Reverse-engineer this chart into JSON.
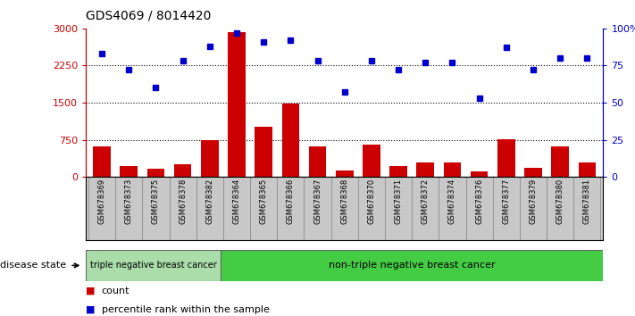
{
  "title": "GDS4069 / 8014420",
  "samples": [
    "GSM678369",
    "GSM678373",
    "GSM678375",
    "GSM678378",
    "GSM678382",
    "GSM678364",
    "GSM678365",
    "GSM678366",
    "GSM678367",
    "GSM678368",
    "GSM678370",
    "GSM678371",
    "GSM678372",
    "GSM678374",
    "GSM678376",
    "GSM678377",
    "GSM678379",
    "GSM678380",
    "GSM678381"
  ],
  "counts": [
    620,
    220,
    175,
    250,
    750,
    2920,
    1020,
    1490,
    620,
    130,
    650,
    215,
    290,
    290,
    120,
    760,
    185,
    610,
    300
  ],
  "percentile_ranks": [
    83,
    72,
    60,
    78,
    88,
    97,
    91,
    92,
    78,
    57,
    78,
    72,
    77,
    77,
    53,
    87,
    72,
    80,
    80
  ],
  "ylim_left": [
    0,
    3000
  ],
  "ylim_right": [
    0,
    100
  ],
  "yticks_left": [
    0,
    750,
    1500,
    2250,
    3000
  ],
  "yticks_right": [
    0,
    25,
    50,
    75,
    100
  ],
  "bar_color": "#cc0000",
  "dot_color": "#0000cc",
  "grid_color": "#000000",
  "tick_area_color": "#c8c8c8",
  "group1_label": "triple negative breast cancer",
  "group2_label": "non-triple negative breast cancer",
  "group1_color": "#aaddaa",
  "group2_color": "#44cc44",
  "group1_count": 5,
  "legend_count_label": "count",
  "legend_pct_label": "percentile rank within the sample",
  "disease_state_label": "disease state"
}
